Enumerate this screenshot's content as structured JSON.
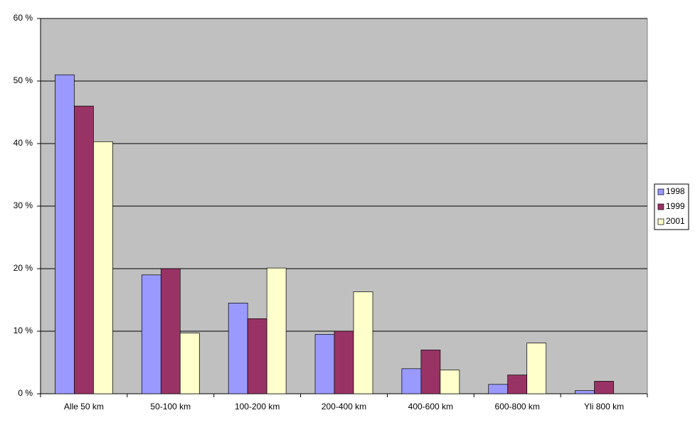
{
  "chart_data": {
    "type": "bar",
    "categories": [
      "Alle 50 km",
      "50-100 km",
      "100-200 km",
      "200-400 km",
      "400-600 km",
      "600-800 km",
      "Yli 800 km"
    ],
    "series": [
      {
        "name": "1998",
        "color": "#9999ff",
        "values": [
          51,
          19,
          14.5,
          9.5,
          4,
          1.5,
          0.5
        ]
      },
      {
        "name": "1999",
        "color": "#993366",
        "values": [
          46,
          20,
          12,
          10,
          7,
          3,
          2
        ]
      },
      {
        "name": "2001",
        "color": "#ffffcc",
        "values": [
          40.3,
          9.7,
          20.1,
          16.3,
          3.8,
          8.1,
          0
        ]
      }
    ],
    "ylim": [
      0,
      60
    ],
    "yticks": [
      {
        "value": 0,
        "label": "0 %"
      },
      {
        "value": 10,
        "label": "10 %"
      },
      {
        "value": 20,
        "label": "20 %"
      },
      {
        "value": 30,
        "label": "30 %"
      },
      {
        "value": 40,
        "label": "40 %"
      },
      {
        "value": 50,
        "label": "50 %"
      },
      {
        "value": 60,
        "label": "60 %"
      }
    ],
    "grid": true,
    "plot_background": "#c0c0c0",
    "legend_position": "right"
  }
}
